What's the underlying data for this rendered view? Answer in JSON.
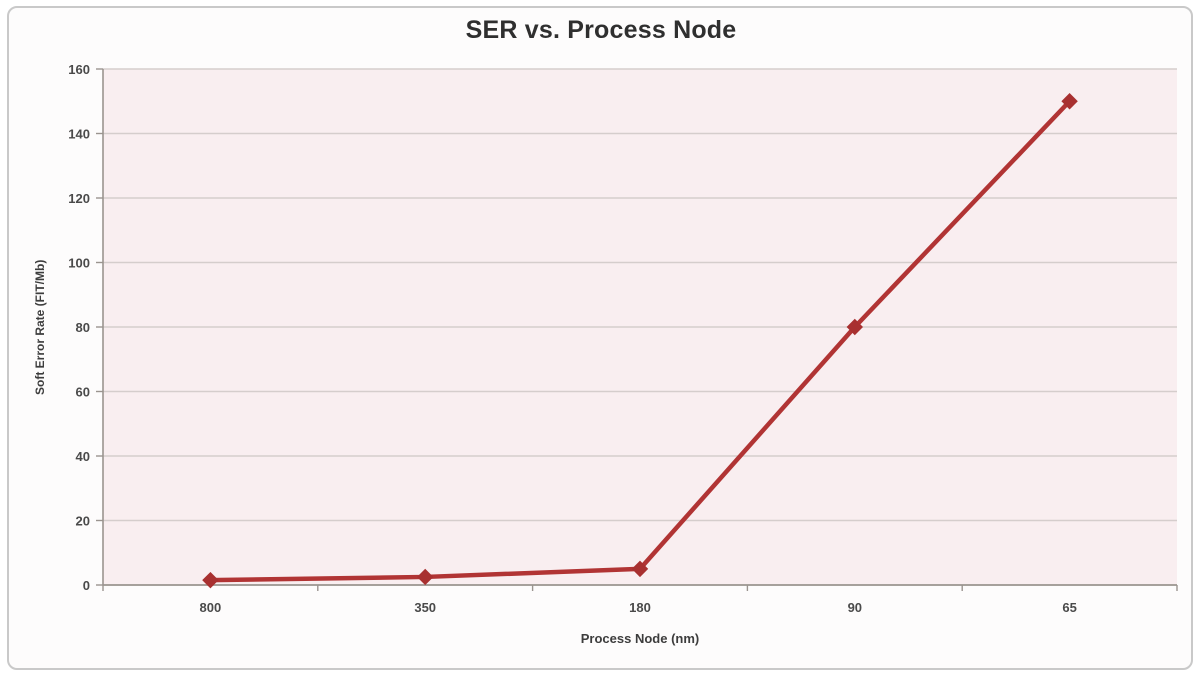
{
  "chart_data": {
    "type": "line",
    "title": "SER vs. Process Node",
    "xlabel": "Process Node (nm)",
    "ylabel": "Soft Error Rate (FIT/Mb)",
    "categories": [
      "800",
      "350",
      "180",
      "90",
      "65"
    ],
    "series": [
      {
        "name": "SER",
        "values": [
          1.5,
          2.5,
          5,
          80,
          150
        ]
      }
    ],
    "ylim": [
      0,
      160
    ],
    "y_ticks": [
      0,
      20,
      40,
      60,
      80,
      100,
      120,
      140,
      160
    ],
    "grid": true,
    "legend_position": "none",
    "marker": "diamond"
  },
  "colors": {
    "line": "#b13434",
    "marker": "#a83030",
    "plot_bg": "#f9eef0",
    "gridline": "#d5cdcc",
    "axis": "#9a948f",
    "tick_text": "#4a4a4a",
    "title_text": "#2f2f2f",
    "frame_border": "#c9c9c9",
    "page_bg": "#fdfcfc"
  }
}
